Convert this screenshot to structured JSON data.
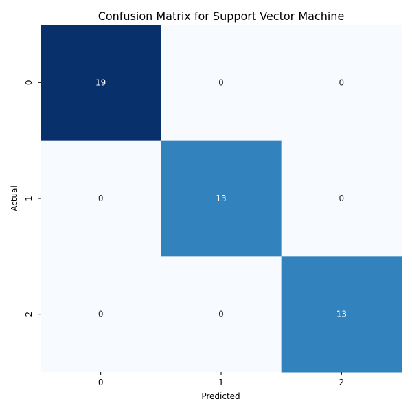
{
  "chart_data": {
    "type": "heatmap",
    "title": "Confusion Matrix for Support Vector Machine",
    "xlabel": "Predicted",
    "ylabel": "Actual",
    "x_categories": [
      "0",
      "1",
      "2"
    ],
    "y_categories": [
      "0",
      "1",
      "2"
    ],
    "values": [
      [
        19,
        0,
        0
      ],
      [
        0,
        13,
        0
      ],
      [
        0,
        0,
        13
      ]
    ],
    "colormap": "Blues",
    "value_range": [
      0,
      19
    ],
    "colors": {
      "zero": "#f7fbff",
      "mid": "#3282be",
      "max": "#08306b",
      "label_light": "#ffffff",
      "label_dark": "#262626"
    },
    "colorbar": false,
    "grid": false
  }
}
